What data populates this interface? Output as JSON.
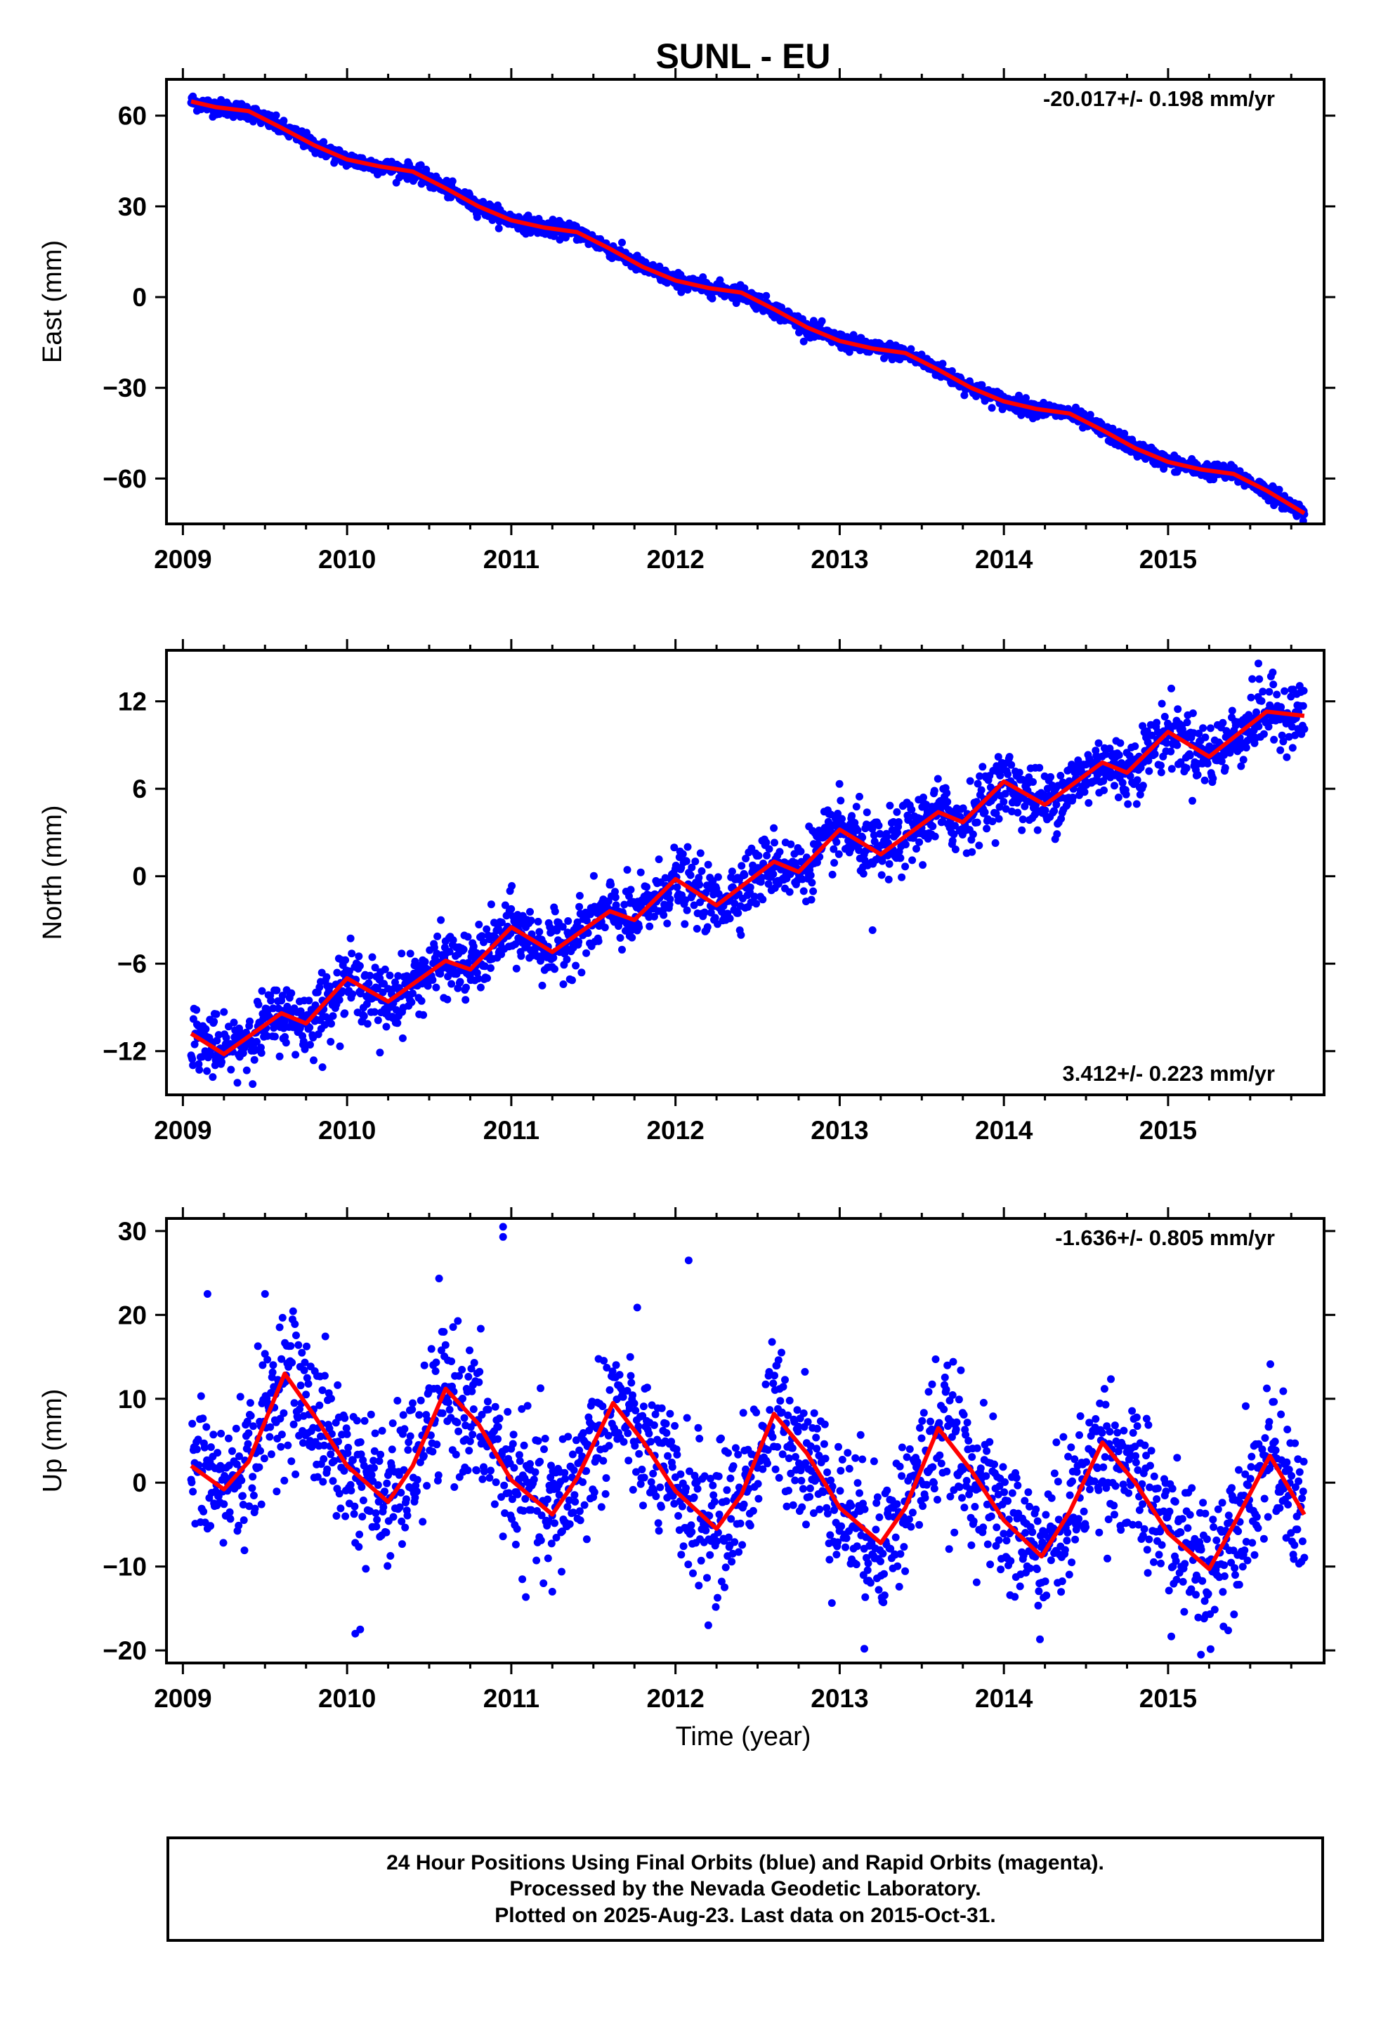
{
  "title": "SUNL - EU",
  "xlabel": "Time (year)",
  "colors": {
    "data_points": "#0000ff",
    "model_fit": "#ff0000",
    "frame": "#000000"
  },
  "caption": {
    "line1": "24 Hour Positions Using Final Orbits (blue) and Rapid Orbits (magenta).",
    "line2": "Processed by the Nevada Geodetic Laboratory.",
    "line3": "Plotted on 2025-Aug-23. Last data on 2015-Oct-31."
  },
  "chart_data": [
    {
      "type": "scatter",
      "ylabel": "East (mm)",
      "rate_label": "-20.017+/- 0.198 mm/yr",
      "rate_position": "top-right",
      "xlim": [
        2008.9,
        2015.95
      ],
      "ylim": [
        -75,
        72
      ],
      "xticks": [
        2009,
        2010,
        2011,
        2012,
        2013,
        2014,
        2015
      ],
      "yticks": [
        -60,
        -30,
        0,
        30,
        60
      ],
      "yticks_labels": [
        "−60",
        "−30",
        "0",
        "30",
        "60"
      ],
      "x_range": [
        2009.05,
        2015.83
      ],
      "series": [
        {
          "model": "fit",
          "points": [
            [
              2009.05,
              64.7
            ],
            [
              2009.2,
              62.8
            ],
            [
              2009.4,
              61.5
            ],
            [
              2009.6,
              56.0
            ],
            [
              2009.8,
              50.2
            ],
            [
              2010.0,
              45.5
            ],
            [
              2010.2,
              43.2
            ],
            [
              2010.4,
              41.5
            ],
            [
              2010.6,
              36.0
            ],
            [
              2010.8,
              30.0
            ],
            [
              2011.0,
              25.4
            ],
            [
              2011.2,
              23.0
            ],
            [
              2011.4,
              21.5
            ],
            [
              2011.6,
              16.0
            ],
            [
              2011.8,
              10.0
            ],
            [
              2012.0,
              5.5
            ],
            [
              2012.2,
              3.0
            ],
            [
              2012.4,
              1.5
            ],
            [
              2012.6,
              -4.0
            ],
            [
              2012.8,
              -10.0
            ],
            [
              2013.0,
              -14.5
            ],
            [
              2013.2,
              -17.0
            ],
            [
              2013.4,
              -18.5
            ],
            [
              2013.6,
              -24.0
            ],
            [
              2013.8,
              -30.0
            ],
            [
              2014.0,
              -34.5
            ],
            [
              2014.2,
              -37.0
            ],
            [
              2014.4,
              -38.5
            ],
            [
              2014.6,
              -44.0
            ],
            [
              2014.8,
              -50.0
            ],
            [
              2015.0,
              -54.5
            ],
            [
              2015.2,
              -57.0
            ],
            [
              2015.4,
              -58.5
            ],
            [
              2015.6,
              -64.0
            ],
            [
              2015.83,
              -71.5
            ]
          ]
        }
      ],
      "scatter_spread": 1.3,
      "outliers": []
    },
    {
      "type": "scatter",
      "ylabel": "North (mm)",
      "rate_label": "3.412+/- 0.223 mm/yr",
      "rate_position": "bottom-right",
      "xlim": [
        2008.9,
        2015.95
      ],
      "ylim": [
        -15,
        15.5
      ],
      "xticks": [
        2009,
        2010,
        2011,
        2012,
        2013,
        2014,
        2015
      ],
      "yticks": [
        -12,
        -6,
        0,
        6,
        12
      ],
      "yticks_labels": [
        "−12",
        "−6",
        "0",
        "6",
        "12"
      ],
      "x_range": [
        2009.05,
        2015.83
      ],
      "series": [
        {
          "model": "fit",
          "points": [
            [
              2009.05,
              -10.8
            ],
            [
              2009.25,
              -12.2
            ],
            [
              2009.6,
              -9.4
            ],
            [
              2009.75,
              -10.1
            ],
            [
              2010.0,
              -7.0
            ],
            [
              2010.25,
              -8.6
            ],
            [
              2010.6,
              -5.8
            ],
            [
              2010.75,
              -6.4
            ],
            [
              2011.0,
              -3.5
            ],
            [
              2011.25,
              -5.2
            ],
            [
              2011.6,
              -2.4
            ],
            [
              2011.75,
              -3.0
            ],
            [
              2012.0,
              -0.2
            ],
            [
              2012.25,
              -2.0
            ],
            [
              2012.6,
              1.0
            ],
            [
              2012.75,
              0.3
            ],
            [
              2013.0,
              3.2
            ],
            [
              2013.25,
              1.5
            ],
            [
              2013.6,
              4.4
            ],
            [
              2013.75,
              3.7
            ],
            [
              2014.0,
              6.5
            ],
            [
              2014.25,
              4.9
            ],
            [
              2014.6,
              7.8
            ],
            [
              2014.75,
              7.1
            ],
            [
              2015.0,
              9.9
            ],
            [
              2015.25,
              8.2
            ],
            [
              2015.6,
              11.3
            ],
            [
              2015.83,
              11.0
            ]
          ]
        }
      ],
      "scatter_spread": 1.1,
      "outliers": [
        [
          2013.2,
          -3.7
        ],
        [
          2009.85,
          -13.1
        ],
        [
          2010.2,
          -12.1
        ],
        [
          2015.55,
          14.6
        ]
      ]
    },
    {
      "type": "scatter",
      "ylabel": "Up (mm)",
      "rate_label": "-1.636+/- 0.805 mm/yr",
      "rate_position": "top-right",
      "xlim": [
        2008.9,
        2015.95
      ],
      "ylim": [
        -21.5,
        31.5
      ],
      "xticks": [
        2009,
        2010,
        2011,
        2012,
        2013,
        2014,
        2015
      ],
      "yticks": [
        -20,
        -10,
        0,
        10,
        20,
        30
      ],
      "yticks_labels": [
        "−20",
        "−10",
        "0",
        "10",
        "20",
        "30"
      ],
      "x_range": [
        2009.05,
        2015.83
      ],
      "series": [
        {
          "model": "fit",
          "points": [
            [
              2009.05,
              2.0
            ],
            [
              2009.25,
              -0.8
            ],
            [
              2009.4,
              2.5
            ],
            [
              2009.62,
              13.0
            ],
            [
              2009.8,
              8.0
            ],
            [
              2010.0,
              2.0
            ],
            [
              2010.25,
              -2.3
            ],
            [
              2010.4,
              2.0
            ],
            [
              2010.6,
              11.2
            ],
            [
              2010.8,
              7.0
            ],
            [
              2011.0,
              0.3
            ],
            [
              2011.25,
              -3.8
            ],
            [
              2011.4,
              0.5
            ],
            [
              2011.62,
              9.5
            ],
            [
              2011.8,
              5.0
            ],
            [
              2012.0,
              -1.0
            ],
            [
              2012.25,
              -5.5
            ],
            [
              2012.4,
              -1.5
            ],
            [
              2012.6,
              8.2
            ],
            [
              2012.8,
              3.5
            ],
            [
              2013.0,
              -3.0
            ],
            [
              2013.25,
              -7.2
            ],
            [
              2013.4,
              -3.0
            ],
            [
              2013.6,
              6.5
            ],
            [
              2013.8,
              1.5
            ],
            [
              2014.0,
              -4.5
            ],
            [
              2014.23,
              -8.8
            ],
            [
              2014.4,
              -3.5
            ],
            [
              2014.6,
              4.8
            ],
            [
              2014.8,
              0.0
            ],
            [
              2015.0,
              -6.0
            ],
            [
              2015.25,
              -10.3
            ],
            [
              2015.4,
              -5.0
            ],
            [
              2015.62,
              3.2
            ],
            [
              2015.83,
              -3.8
            ]
          ]
        }
      ],
      "scatter_spread": 4.2,
      "outliers": [
        [
          2010.95,
          30.5
        ],
        [
          2010.95,
          29.3
        ],
        [
          2012.08,
          26.5
        ],
        [
          2009.15,
          22.5
        ],
        [
          2009.5,
          22.5
        ],
        [
          2013.15,
          -19.8
        ],
        [
          2015.2,
          -20.5
        ],
        [
          2010.08,
          -17.5
        ],
        [
          2010.05,
          -18.0
        ],
        [
          2011.25,
          -13.0
        ],
        [
          2012.2,
          -17.0
        ]
      ]
    }
  ]
}
